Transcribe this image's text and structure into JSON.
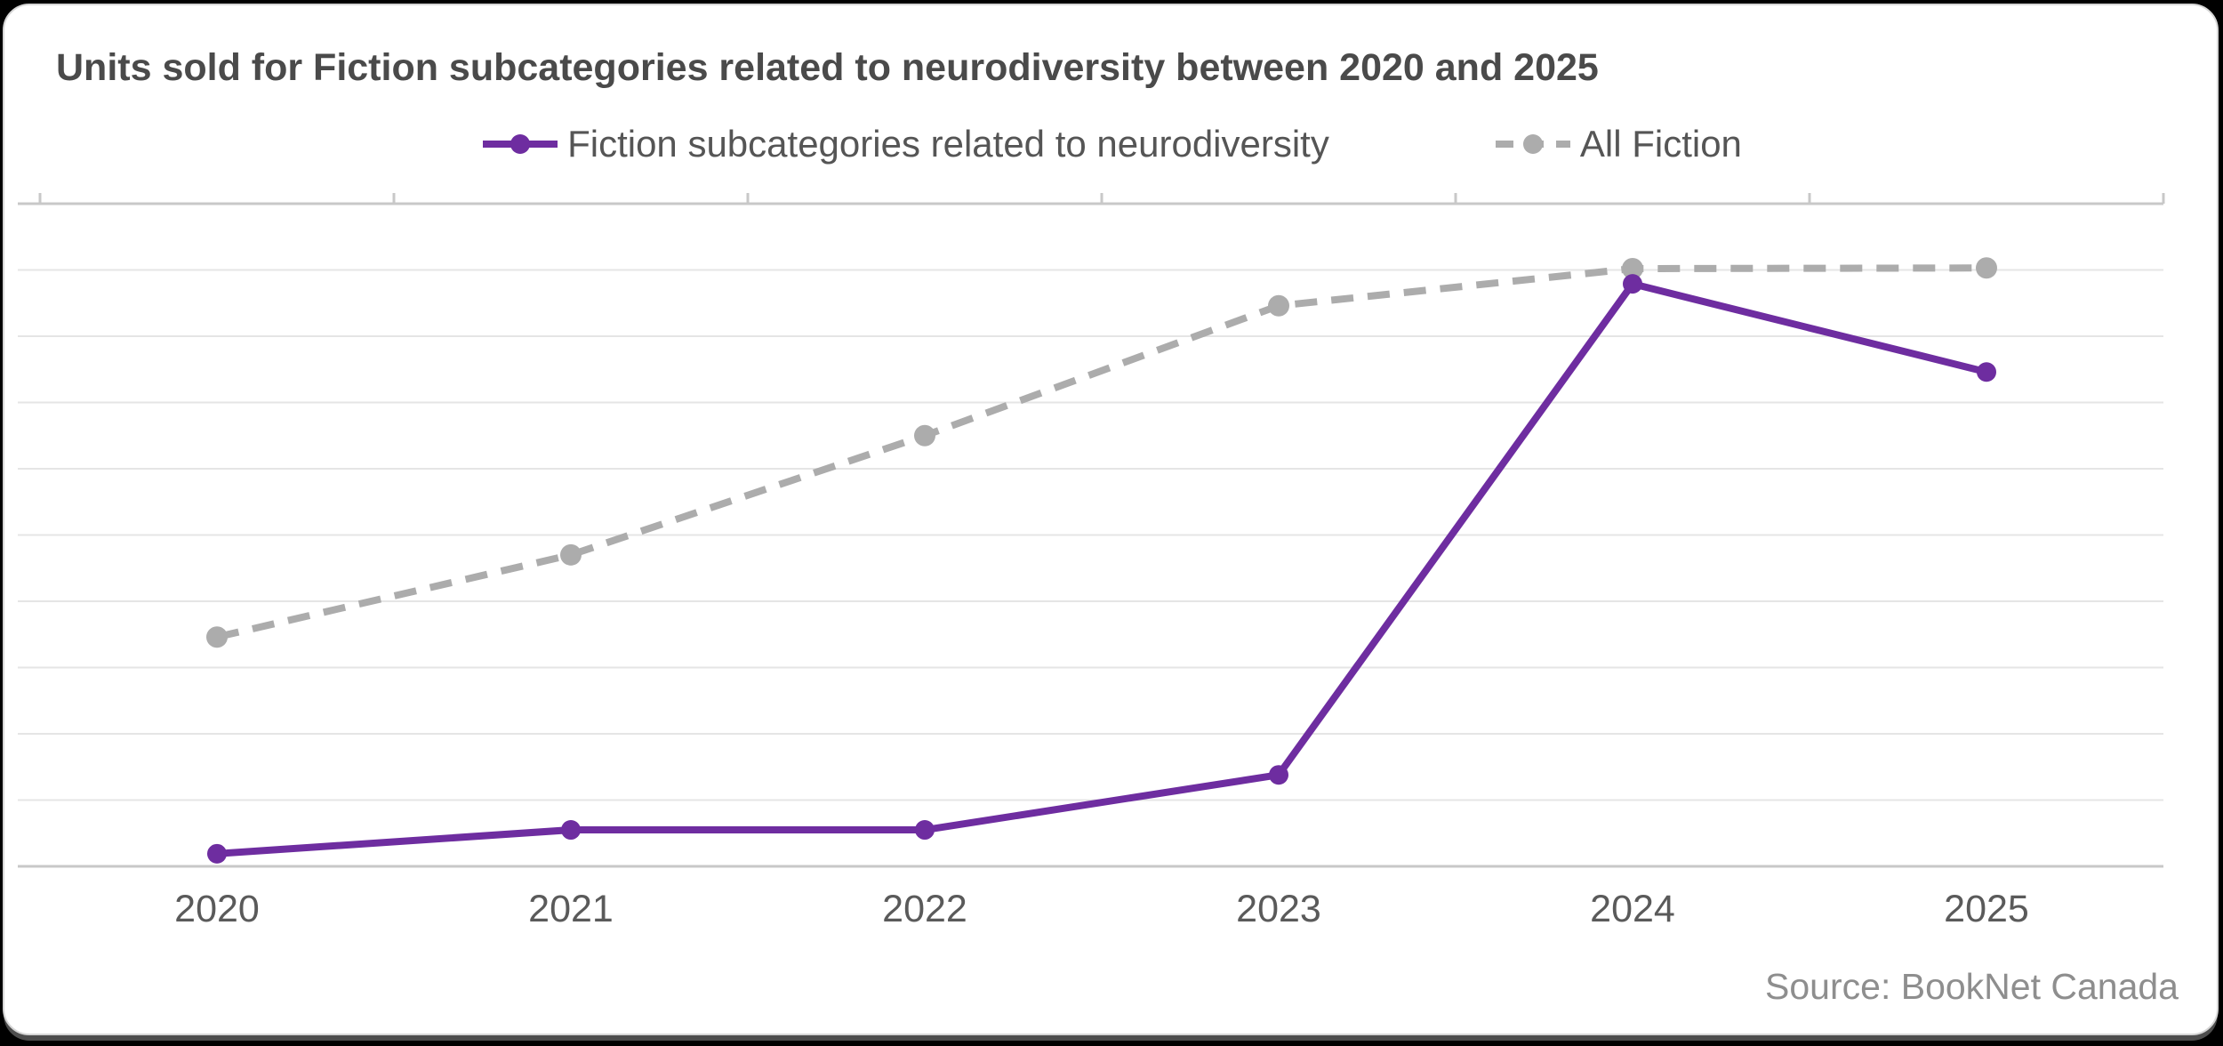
{
  "page": {
    "background_color": "#000000",
    "card_background_color": "#ffffff"
  },
  "header": {
    "title": "Units sold for Fiction subcategories related to neurodiversity between 2020 and 2025"
  },
  "legend": {
    "items": [
      {
        "label": "Fiction subcategories related to neurodiversity",
        "color": "#6E2DA0",
        "line_style": "solid"
      },
      {
        "label": "All Fiction",
        "color": "#ACACAC",
        "line_style": "dashed"
      }
    ]
  },
  "source": {
    "label": "Source: BookNet Canada"
  },
  "chart_data": {
    "type": "line",
    "title": "Units sold for Fiction subcategories related to neurodiversity between 2020 and 2025",
    "x": [
      "2020",
      "2021",
      "2022",
      "2023",
      "2024",
      "2025"
    ],
    "series": [
      {
        "name": "Fiction subcategories related to neurodiversity",
        "color": "#6E2DA0",
        "line_style": "solid",
        "marker": "circle",
        "values_relative": [
          1.9,
          5.5,
          5.5,
          13.8,
          87.9,
          74.6
        ]
      },
      {
        "name": "All Fiction",
        "color": "#ACACAC",
        "line_style": "dashed",
        "marker": "circle",
        "values_relative": [
          34.6,
          47.0,
          65.0,
          84.6,
          90.2,
          90.3
        ]
      }
    ],
    "xlabel": "",
    "ylabel": "",
    "y_axis": {
      "tick_labels_visible": false,
      "note": "No numeric y-axis labels shown in chart; values are relative heights (percent of plot height), one gridline every 10 units",
      "ylim": [
        0,
        100
      ],
      "gridline_interval": 10
    },
    "grid": "horizontal",
    "legend_position": "top-center",
    "source": "Source: BookNet Canada",
    "colors": {
      "gridline": "#e5e5e5",
      "axis_line": "#c8c8c8",
      "title_text": "#4a4a4a",
      "legend_text": "#555555",
      "axis_label_text": "#5a5a5a",
      "source_text": "#8e8e8e"
    }
  }
}
